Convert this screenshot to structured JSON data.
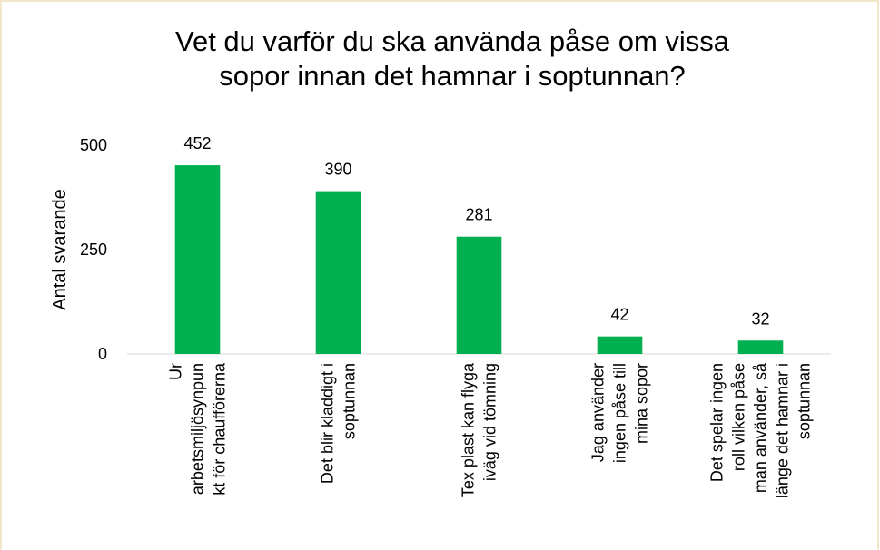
{
  "chart_data": {
    "type": "bar",
    "title": "Vet du varför du ska använda påse om vissa\nsopor innan det hamnar i soptunnan?",
    "y_label": "Antal svarande",
    "categories": [
      "Ur\narbetsmiljösynpun\nkt för chaufförerna",
      "Det blir kladdigt i\nsoptunnan",
      "Tex plast kan flyga\niväg vid tömning",
      "Jag använder\ningen påse till\nmina sopor",
      "Det spelar ingen\nroll vilken påse\nman använder, så\nlänge det hamnar i\nsoptunnan"
    ],
    "values": [
      452,
      390,
      281,
      42,
      32
    ],
    "color": "#00b050",
    "ylim": [
      0,
      500
    ],
    "yticks": [
      0,
      250,
      500
    ],
    "grid": false
  }
}
